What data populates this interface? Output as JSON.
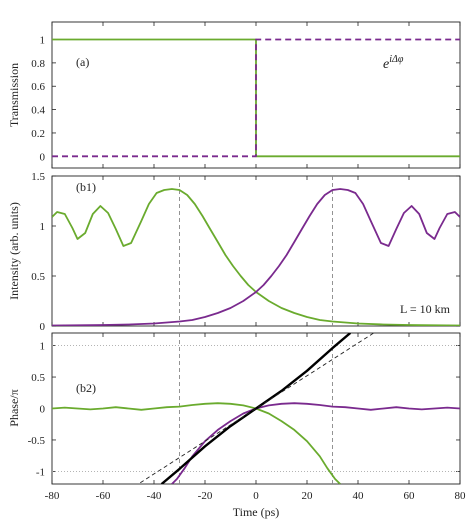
{
  "chart_data": [
    {
      "type": "line",
      "panel_label": "(a)",
      "ylabel": "Transmission",
      "ylim": [
        -0.1,
        1.15
      ],
      "xlim": [
        -80,
        80
      ],
      "yticks": [
        "0",
        "0.2",
        "0.4",
        "0.6",
        "0.8",
        "1"
      ],
      "annotation": "e^{iΔφ}",
      "colors": {
        "green": "#6aab2e",
        "purple": "#7a2a8e"
      },
      "series": [
        {
          "color": "#6aab2e",
          "style": "solid",
          "x": [
            -80,
            0,
            0,
            80
          ],
          "y": [
            1,
            1,
            0,
            0
          ]
        },
        {
          "color": "#7a2a8e",
          "style": "dashed",
          "x": [
            -80,
            0,
            0,
            80
          ],
          "y": [
            0,
            0,
            1,
            1
          ]
        }
      ]
    },
    {
      "type": "line",
      "panel_label": "(b1)",
      "ylabel": "Intensity (arb. units)",
      "ylim": [
        0,
        1.5
      ],
      "xlim": [
        -80,
        80
      ],
      "yticks": [
        "0",
        "0.5",
        "1",
        "1.5"
      ],
      "annotation": "L = 10 km",
      "vlines": [
        -30,
        30
      ],
      "series": [
        {
          "color": "#6aab2e",
          "x": [
            -80,
            -78,
            -75,
            -72,
            -70,
            -67,
            -64,
            -61,
            -58,
            -55,
            -52,
            -49,
            -45,
            -42,
            -39,
            -36,
            -33,
            -30,
            -27,
            -24,
            -21,
            -18,
            -15,
            -12,
            -9,
            -6,
            -3,
            0,
            5,
            10,
            15,
            20,
            25,
            30,
            40,
            50,
            60,
            70,
            80
          ],
          "y": [
            1.09,
            1.14,
            1.12,
            0.98,
            0.87,
            0.93,
            1.12,
            1.2,
            1.13,
            0.97,
            0.8,
            0.83,
            1.05,
            1.22,
            1.33,
            1.36,
            1.37,
            1.36,
            1.31,
            1.22,
            1.1,
            0.97,
            0.84,
            0.71,
            0.6,
            0.5,
            0.41,
            0.34,
            0.25,
            0.18,
            0.13,
            0.09,
            0.06,
            0.045,
            0.025,
            0.015,
            0.01,
            0.007,
            0.005
          ]
        },
        {
          "color": "#7a2a8e",
          "x": [
            -80,
            -70,
            -60,
            -50,
            -40,
            -30,
            -25,
            -20,
            -15,
            -10,
            -5,
            0,
            3,
            6,
            9,
            12,
            15,
            18,
            21,
            24,
            27,
            30,
            33,
            36,
            39,
            42,
            45,
            49,
            52,
            55,
            58,
            61,
            64,
            67,
            70,
            72,
            75,
            78,
            80
          ],
          "y": [
            0.005,
            0.007,
            0.01,
            0.015,
            0.025,
            0.045,
            0.06,
            0.09,
            0.13,
            0.18,
            0.25,
            0.34,
            0.41,
            0.5,
            0.6,
            0.71,
            0.84,
            0.97,
            1.1,
            1.22,
            1.31,
            1.36,
            1.37,
            1.36,
            1.33,
            1.22,
            1.05,
            0.83,
            0.8,
            0.97,
            1.13,
            1.2,
            1.12,
            0.93,
            0.87,
            0.98,
            1.12,
            1.14,
            1.09
          ]
        }
      ]
    },
    {
      "type": "line",
      "panel_label": "(b2)",
      "ylabel": "Phase/π",
      "xlabel": "Time (ps)",
      "ylim": [
        -1.2,
        1.2
      ],
      "xlim": [
        -80,
        80
      ],
      "yticks": [
        "-1",
        "-0.5",
        "0",
        "0.5",
        "1"
      ],
      "xticks": [
        "-80",
        "-60",
        "-40",
        "-20",
        "0",
        "20",
        "40",
        "60",
        "80"
      ],
      "vlines": [
        -30,
        30
      ],
      "hlines": [
        -1,
        1
      ],
      "series": [
        {
          "color": "#6aab2e",
          "x": [
            -80,
            -75,
            -70,
            -65,
            -60,
            -55,
            -50,
            -45,
            -40,
            -35,
            -30,
            -25,
            -20,
            -15,
            -10,
            -5,
            0,
            5,
            10,
            15,
            20,
            25,
            28,
            31,
            33
          ],
          "y": [
            0.0,
            0.015,
            0.0,
            -0.015,
            0.0,
            0.02,
            0.0,
            -0.02,
            0.0,
            0.02,
            0.03,
            0.055,
            0.075,
            0.085,
            0.075,
            0.05,
            0.0,
            -0.08,
            -0.2,
            -0.34,
            -0.52,
            -0.76,
            -0.95,
            -1.12,
            -1.2
          ]
        },
        {
          "color": "#7a2a8e",
          "x": [
            -33,
            -31,
            -28,
            -25,
            -20,
            -15,
            -10,
            -5,
            0,
            5,
            10,
            15,
            20,
            25,
            30,
            35,
            40,
            45,
            50,
            55,
            60,
            65,
            70,
            75,
            80
          ],
          "y": [
            -1.2,
            -1.12,
            -0.95,
            -0.76,
            -0.52,
            -0.34,
            -0.2,
            -0.08,
            0.0,
            0.05,
            0.075,
            0.085,
            0.075,
            0.055,
            0.03,
            0.02,
            0.0,
            -0.02,
            0.0,
            0.02,
            0.0,
            -0.015,
            0.0,
            0.015,
            0.0
          ]
        },
        {
          "color": "#000000",
          "style": "thick",
          "x": [
            -37,
            -30,
            -20,
            -10,
            0,
            10,
            20,
            30,
            37
          ],
          "y": [
            -1.2,
            -0.96,
            -0.6,
            -0.28,
            0.0,
            0.28,
            0.6,
            0.96,
            1.2
          ]
        },
        {
          "color": "#222222",
          "style": "thin-dashed",
          "x": [
            -50,
            50
          ],
          "y": [
            -1.3,
            1.3
          ]
        }
      ]
    }
  ]
}
